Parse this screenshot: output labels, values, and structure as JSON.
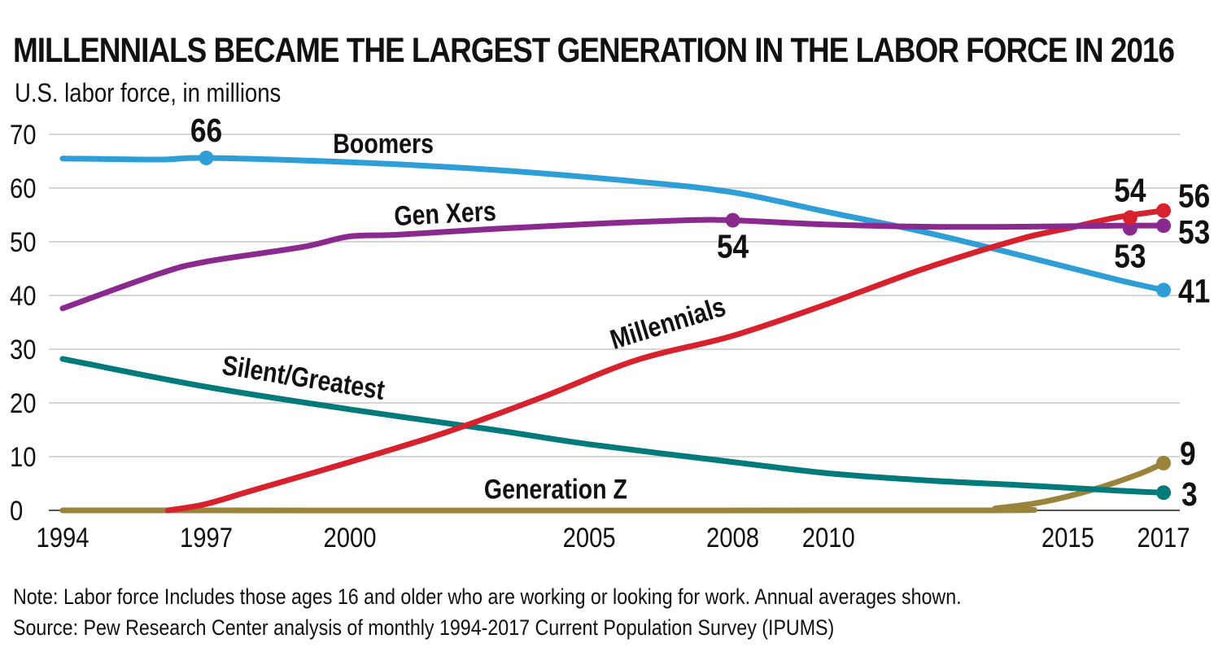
{
  "chart_data": {
    "type": "line",
    "title": "MILLENNIALS BECAME THE LARGEST GENERATION IN THE LABOR FORCE IN 2016",
    "subtitle": "U.S. labor force, in millions",
    "xlabel": "",
    "ylabel": "",
    "xlim": [
      1994,
      2017
    ],
    "ylim": [
      0,
      70
    ],
    "grid": true,
    "x_ticks": [
      1994,
      1997,
      2000,
      2005,
      2008,
      2010,
      2015,
      2017
    ],
    "y_ticks": [
      0,
      10,
      20,
      30,
      40,
      50,
      60,
      70
    ],
    "series": [
      {
        "name": "Boomers",
        "color": "#2e9ed6",
        "points": [
          [
            1994,
            65.5
          ],
          [
            1996,
            65.3
          ],
          [
            1997,
            65.6
          ],
          [
            2000,
            64.8
          ],
          [
            2003,
            63.4
          ],
          [
            2006,
            61.2
          ],
          [
            2008,
            59.2
          ],
          [
            2010,
            55.5
          ],
          [
            2012,
            51.8
          ],
          [
            2014,
            47.5
          ],
          [
            2016,
            43
          ],
          [
            2017,
            41
          ]
        ]
      },
      {
        "name": "Gen Xers",
        "color": "#8b2a8e",
        "points": [
          [
            1994,
            37.6
          ],
          [
            1996,
            44
          ],
          [
            1997,
            46.3
          ],
          [
            1999,
            49
          ],
          [
            2000,
            51
          ],
          [
            2001,
            51.3
          ],
          [
            2003,
            52.4
          ],
          [
            2005,
            53.3
          ],
          [
            2007,
            54
          ],
          [
            2008,
            54
          ],
          [
            2010,
            53.2
          ],
          [
            2012,
            52.8
          ],
          [
            2014,
            52.8
          ],
          [
            2016,
            53
          ],
          [
            2017,
            53
          ]
        ]
      },
      {
        "name": "Millennials",
        "color": "#d7212d",
        "points": [
          [
            1996.2,
            0
          ],
          [
            1997,
            1.2
          ],
          [
            1998,
            3.8
          ],
          [
            2000,
            9
          ],
          [
            2002,
            14.5
          ],
          [
            2004,
            21
          ],
          [
            2006,
            28
          ],
          [
            2008,
            32.5
          ],
          [
            2010,
            38.5
          ],
          [
            2012,
            45
          ],
          [
            2014,
            50.5
          ],
          [
            2015,
            52.5
          ],
          [
            2016,
            54.5
          ],
          [
            2017,
            55.8
          ]
        ]
      },
      {
        "name": "Silent/Greatest",
        "color": "#007a7a",
        "points": [
          [
            1994,
            28.2
          ],
          [
            1997,
            23
          ],
          [
            2000,
            18.8
          ],
          [
            2003,
            15
          ],
          [
            2005,
            12.3
          ],
          [
            2008,
            9
          ],
          [
            2010,
            6.9
          ],
          [
            2012,
            5.6
          ],
          [
            2014,
            4.7
          ],
          [
            2016,
            3.7
          ],
          [
            2017,
            3.3
          ]
        ]
      },
      {
        "name": "Generation Z",
        "color": "#9a833a",
        "points": [
          [
            1994,
            0
          ],
          [
            2012.7,
            0
          ],
          [
            2013.5,
            0.4
          ],
          [
            2014.5,
            1.6
          ],
          [
            2015.5,
            3.8
          ],
          [
            2016.5,
            6.8
          ],
          [
            2017,
            8.8
          ]
        ]
      }
    ],
    "markers": [
      {
        "series": "Boomers",
        "x": 1997,
        "y": 65.6,
        "label": "66"
      },
      {
        "series": "Boomers",
        "x": 2017,
        "y": 41,
        "label": "41"
      },
      {
        "series": "Gen Xers",
        "x": 2008,
        "y": 54,
        "label": "54"
      },
      {
        "series": "Gen Xers",
        "x": 2016.3,
        "y": 52.5,
        "label": "53"
      },
      {
        "series": "Gen Xers",
        "x": 2017,
        "y": 53,
        "label": "53"
      },
      {
        "series": "Millennials",
        "x": 2016.3,
        "y": 54.5,
        "label": "54"
      },
      {
        "series": "Millennials",
        "x": 2017,
        "y": 55.8,
        "label": "56"
      },
      {
        "series": "Generation Z",
        "x": 2017,
        "y": 8.8,
        "label": "9"
      },
      {
        "series": "Silent/Greatest",
        "x": 2017,
        "y": 3.3,
        "label": "3"
      }
    ]
  },
  "notes": {
    "note": "Note: Labor force Includes those ages 16 and older who are working or looking for work. Annual averages shown.",
    "source": "Source: Pew Research Center analysis of monthly 1994-2017 Current Population Survey (IPUMS)"
  }
}
